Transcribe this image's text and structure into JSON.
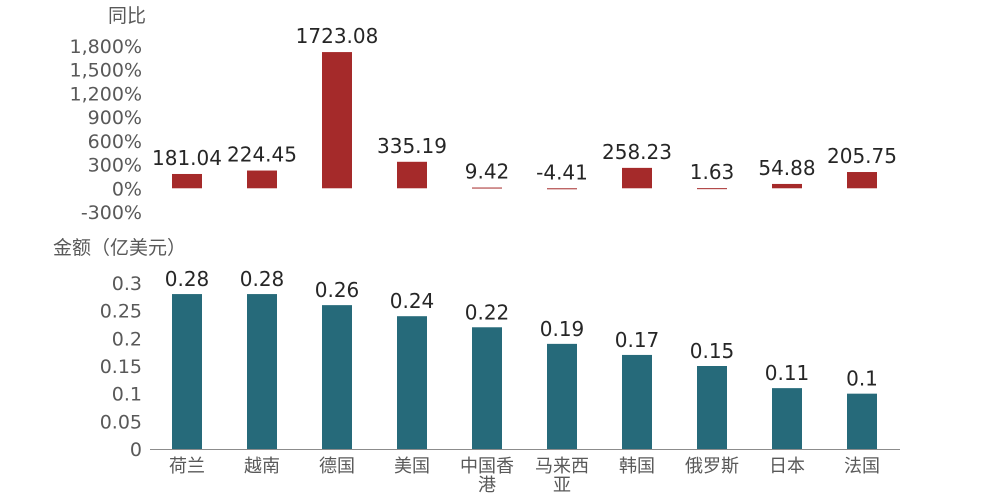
{
  "chart_data": [
    {
      "type": "bar",
      "ylabel": "同比",
      "categories": [
        "荷兰",
        "越南",
        "德国",
        "美国",
        "中国香港",
        "马来西亚",
        "韩国",
        "俄罗斯",
        "日本",
        "法国"
      ],
      "values": [
        181.04,
        224.45,
        1723.08,
        335.19,
        9.42,
        -4.41,
        258.23,
        1.63,
        54.88,
        205.75
      ],
      "data_labels": [
        "181.04",
        "224.45",
        "1723.08",
        "335.19",
        "9.42",
        "-4.41",
        "258.23",
        "1.63",
        "54.88",
        "205.75"
      ],
      "ylim": [
        -300,
        1800
      ],
      "yticks": [
        1800,
        1500,
        1200,
        900,
        600,
        300,
        0,
        -300
      ],
      "ytick_labels": [
        "1,800%",
        "1,500%",
        "1,200%",
        "900%",
        "600%",
        "300%",
        "0%",
        "-300%"
      ],
      "color": "#a52a2a",
      "grid": false
    },
    {
      "type": "bar",
      "ylabel": "金额（亿美元）",
      "categories": [
        "荷兰",
        "越南",
        "德国",
        "美国",
        "中国香港",
        "马来西亚",
        "韩国",
        "俄罗斯",
        "日本",
        "法国"
      ],
      "category_label_lines": [
        [
          "荷兰"
        ],
        [
          "越南"
        ],
        [
          "德国"
        ],
        [
          "美国"
        ],
        [
          "中国香",
          "港"
        ],
        [
          "马来西",
          "亚"
        ],
        [
          "韩国"
        ],
        [
          "俄罗斯"
        ],
        [
          "日本"
        ],
        [
          "法国"
        ]
      ],
      "values": [
        0.28,
        0.28,
        0.26,
        0.24,
        0.22,
        0.19,
        0.17,
        0.15,
        0.11,
        0.1
      ],
      "data_labels": [
        "0.28",
        "0.28",
        "0.26",
        "0.24",
        "0.22",
        "0.19",
        "0.17",
        "0.15",
        "0.11",
        "0.1"
      ],
      "ylim": [
        0,
        0.3
      ],
      "yticks": [
        0.3,
        0.25,
        0.2,
        0.15,
        0.1,
        0.05,
        0
      ],
      "ytick_labels": [
        "0.3",
        "0.25",
        "0.2",
        "0.15",
        "0.1",
        "0.05",
        "0"
      ],
      "color": "#266a7a",
      "grid": false
    }
  ]
}
